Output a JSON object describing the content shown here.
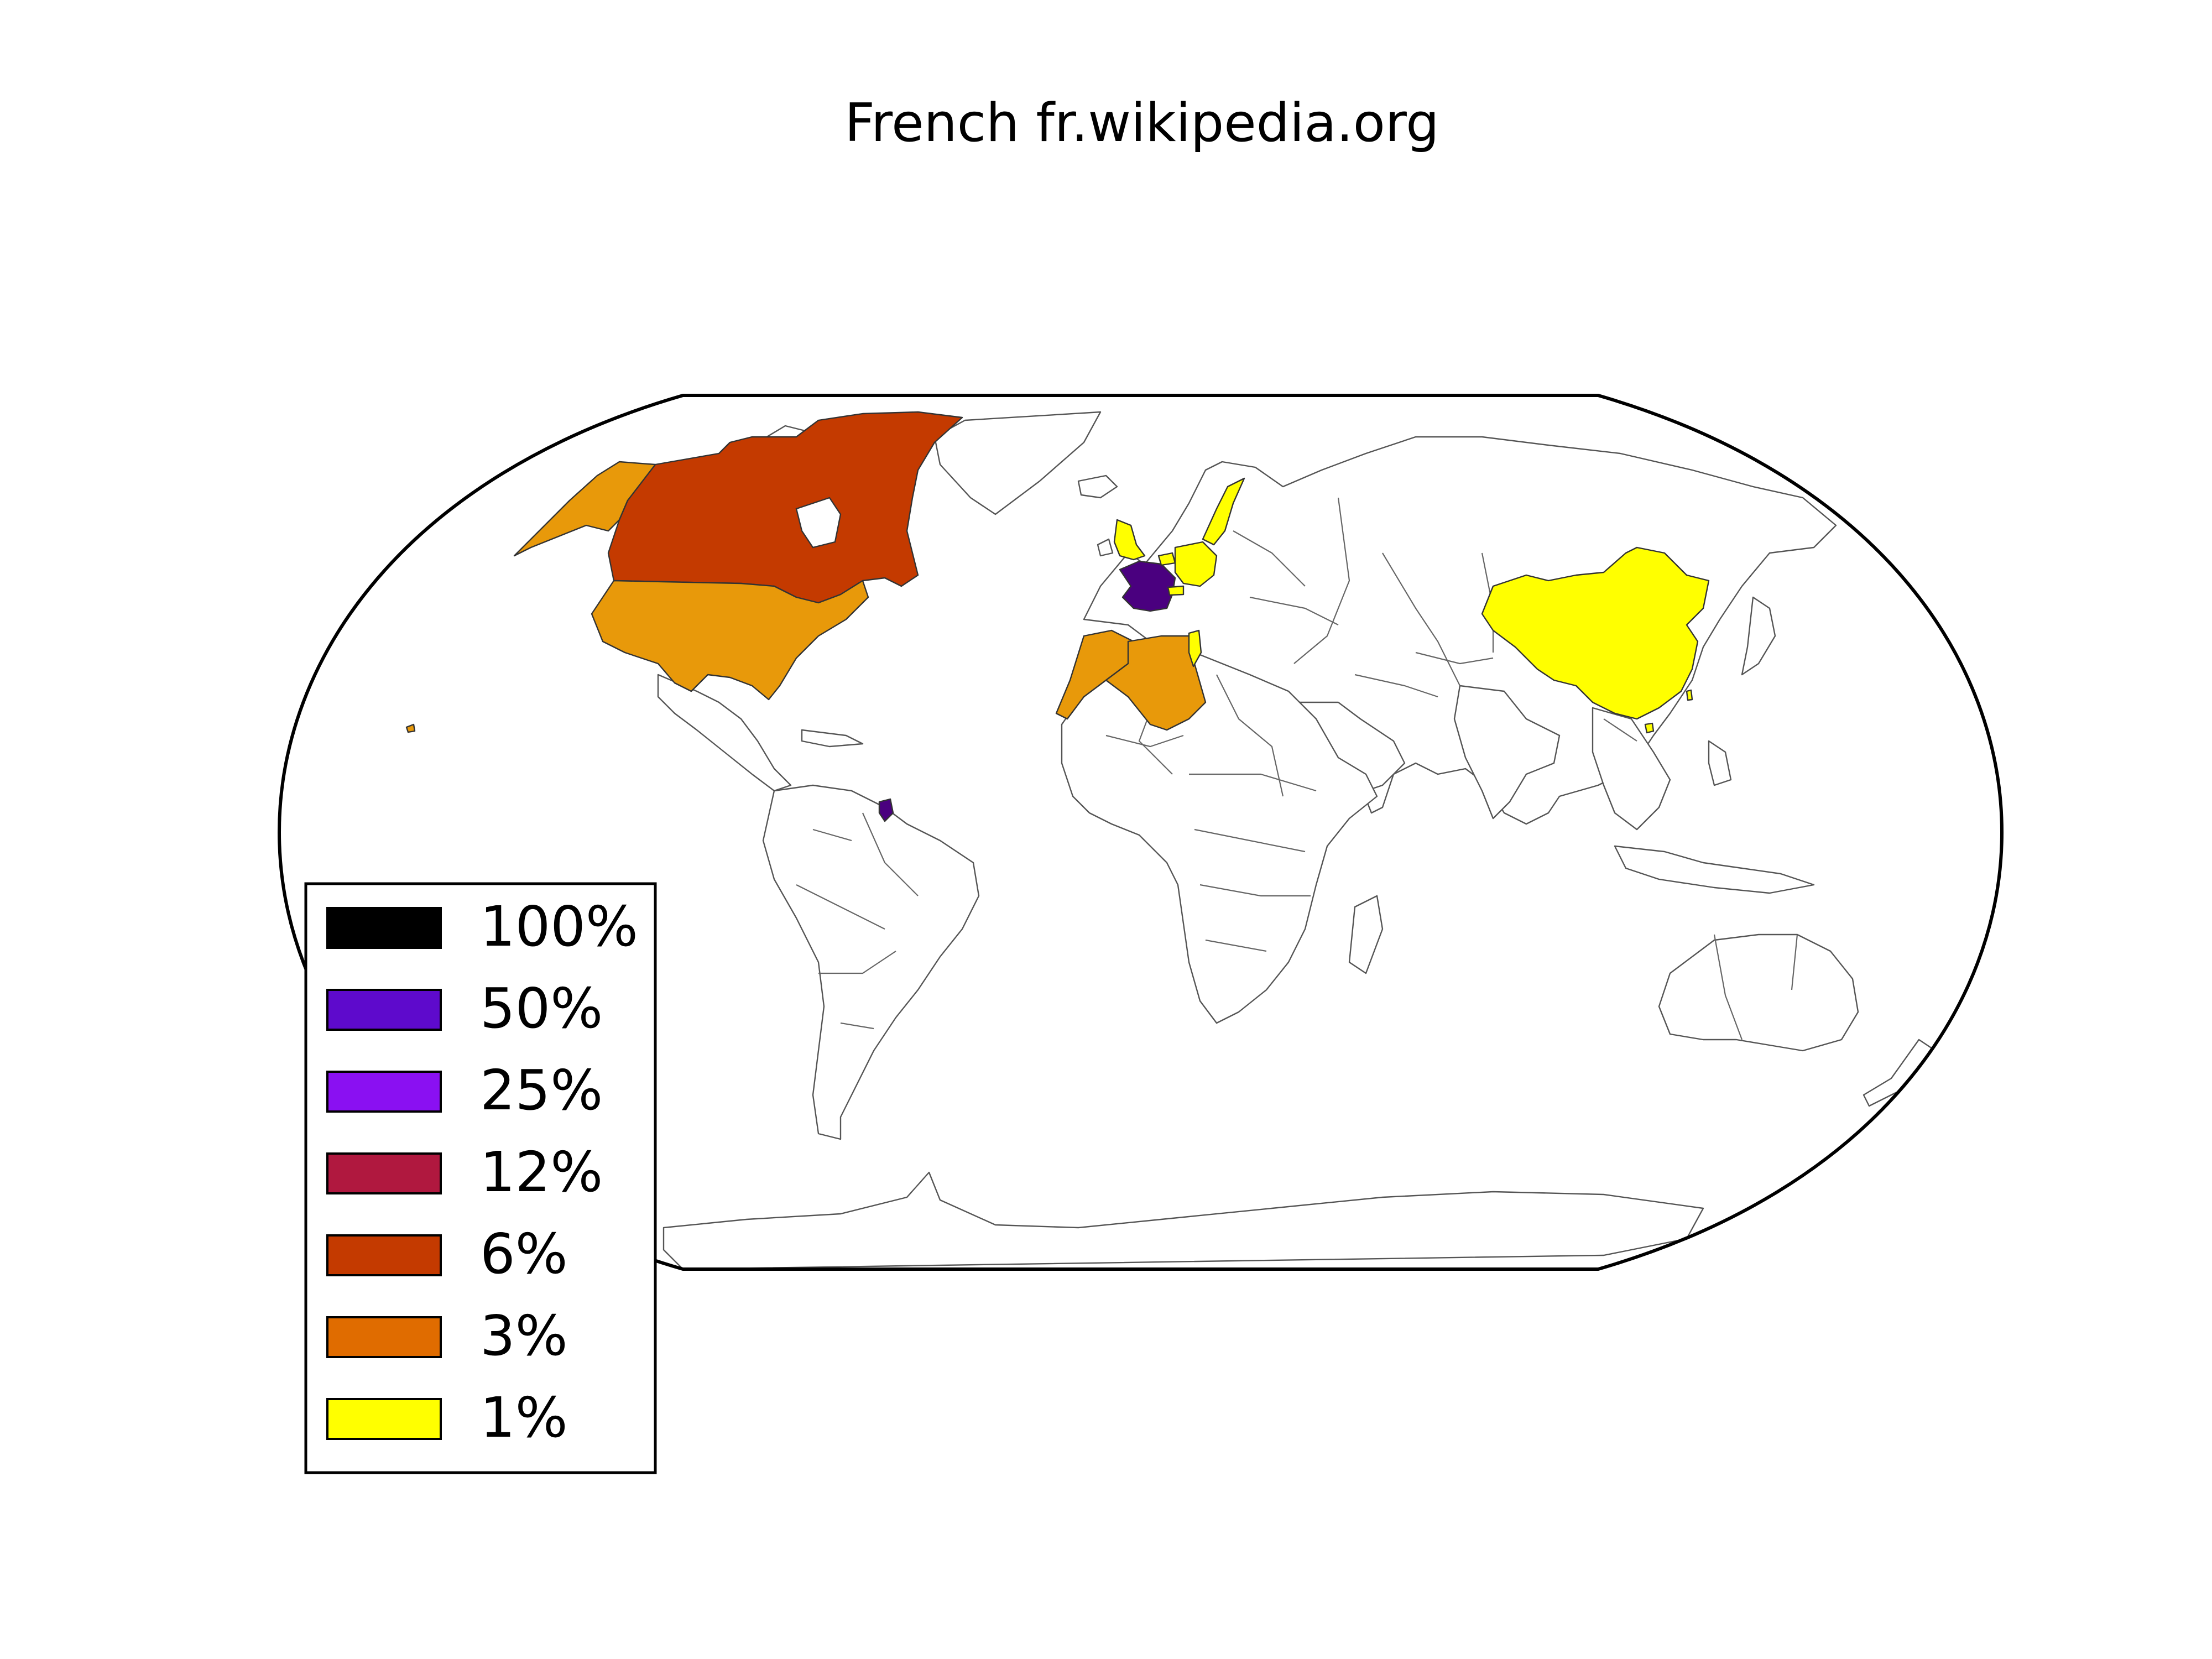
{
  "title": "French fr.wikipedia.org",
  "legend": [
    {
      "label": "100%",
      "color": "#000000"
    },
    {
      "label": "50%",
      "color": "#5e0acc"
    },
    {
      "label": "25%",
      "color": "#8a10f2"
    },
    {
      "label": "12%",
      "color": "#b0183f"
    },
    {
      "label": "6%",
      "color": "#c43a00"
    },
    {
      "label": "3%",
      "color": "#e06c00"
    },
    {
      "label": "1%",
      "color": "#ffff00"
    }
  ],
  "regions": [
    {
      "name": "Canada",
      "bin": "6%",
      "color": "#c43a00"
    },
    {
      "name": "United States",
      "bin": "3%",
      "color": "#e8990a"
    },
    {
      "name": "Alaska",
      "bin": "3%",
      "color": "#e8990a"
    },
    {
      "name": "France",
      "bin": "50%",
      "color": "#4a007f"
    },
    {
      "name": "French Guiana",
      "bin": "50%",
      "color": "#4a007f"
    },
    {
      "name": "Morocco",
      "bin": "3%",
      "color": "#e8990a"
    },
    {
      "name": "Algeria",
      "bin": "3%",
      "color": "#e8990a"
    },
    {
      "name": "Tunisia",
      "bin": "1%",
      "color": "#ffff00"
    },
    {
      "name": "Belgium",
      "bin": "1%",
      "color": "#ffff00"
    },
    {
      "name": "Germany",
      "bin": "1%",
      "color": "#ffff00"
    },
    {
      "name": "Switzerland",
      "bin": "1%",
      "color": "#ffff00"
    },
    {
      "name": "United Kingdom",
      "bin": "1%",
      "color": "#ffff00"
    },
    {
      "name": "Sweden",
      "bin": "1%",
      "color": "#ffff00"
    },
    {
      "name": "China",
      "bin": "1%",
      "color": "#ffff00"
    }
  ]
}
